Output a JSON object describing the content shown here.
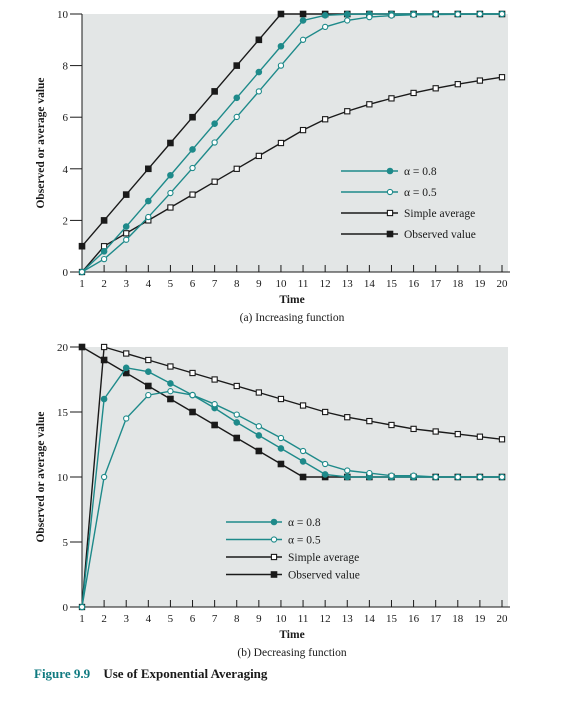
{
  "figure": {
    "number": "Figure 9.9",
    "title": "Use of Exponential Averaging"
  },
  "colors": {
    "plot_bg": "#e3e6e6",
    "teal": "#1e8a8a",
    "black": "#1a1a1a"
  },
  "chart_data": [
    {
      "type": "line",
      "subtitle": "(a) Increasing function",
      "xlabel": "Time",
      "ylabel": "Observed or average value",
      "xlim": [
        1,
        20
      ],
      "ylim": [
        0,
        10
      ],
      "xticks": [
        1,
        2,
        3,
        4,
        5,
        6,
        7,
        8,
        9,
        10,
        11,
        12,
        13,
        14,
        15,
        16,
        17,
        18,
        19,
        20
      ],
      "yticks": [
        0,
        2,
        4,
        6,
        8,
        10
      ],
      "legend": "right",
      "x": [
        1,
        2,
        3,
        4,
        5,
        6,
        7,
        8,
        9,
        10,
        11,
        12,
        13,
        14,
        15,
        16,
        17,
        18,
        19,
        20
      ],
      "series": [
        {
          "name": "α = 0.8",
          "color": "teal",
          "marker": "filled-circle",
          "values": [
            0,
            0.8,
            1.76,
            2.75,
            3.75,
            4.75,
            5.75,
            6.75,
            7.75,
            8.75,
            9.75,
            9.95,
            9.99,
            10,
            10,
            10,
            10,
            10,
            10,
            10
          ]
        },
        {
          "name": "α = 0.5",
          "color": "teal",
          "marker": "open-circle",
          "values": [
            0,
            0.5,
            1.25,
            2.13,
            3.06,
            4.03,
            5.02,
            6.01,
            7.0,
            8.0,
            9.0,
            9.5,
            9.75,
            9.88,
            9.94,
            9.97,
            9.98,
            9.99,
            10,
            10
          ]
        },
        {
          "name": "Simple average",
          "color": "black",
          "marker": "open-square",
          "values": [
            0,
            1.0,
            1.5,
            2.0,
            2.5,
            3.0,
            3.5,
            4.0,
            4.5,
            5.0,
            5.5,
            5.92,
            6.23,
            6.5,
            6.73,
            6.94,
            7.12,
            7.28,
            7.42,
            7.55
          ]
        },
        {
          "name": "Observed value",
          "color": "black",
          "marker": "filled-square",
          "values": [
            1,
            2,
            3,
            4,
            5,
            6,
            7,
            8,
            9,
            10,
            10,
            10,
            10,
            10,
            10,
            10,
            10,
            10,
            10,
            10
          ]
        }
      ]
    },
    {
      "type": "line",
      "subtitle": "(b) Decreasing function",
      "xlabel": "Time",
      "ylabel": "Observed or average value",
      "xlim": [
        1,
        20
      ],
      "ylim": [
        0,
        20
      ],
      "xticks": [
        1,
        2,
        3,
        4,
        5,
        6,
        7,
        8,
        9,
        10,
        11,
        12,
        13,
        14,
        15,
        16,
        17,
        18,
        19,
        20
      ],
      "yticks": [
        0,
        5,
        10,
        15,
        20
      ],
      "legend": "center",
      "x": [
        1,
        2,
        3,
        4,
        5,
        6,
        7,
        8,
        9,
        10,
        11,
        12,
        13,
        14,
        15,
        16,
        17,
        18,
        19,
        20
      ],
      "series": [
        {
          "name": "α = 0.8",
          "color": "teal",
          "marker": "filled-circle",
          "values": [
            0,
            16,
            18.4,
            18.1,
            17.2,
            16.3,
            15.3,
            14.2,
            13.2,
            12.2,
            11.2,
            10.2,
            10.0,
            10.0,
            10.0,
            10.0,
            10.0,
            10.0,
            10.0,
            10.0
          ]
        },
        {
          "name": "α = 0.5",
          "color": "teal",
          "marker": "open-circle",
          "values": [
            0,
            10,
            14.5,
            16.3,
            16.6,
            16.3,
            15.6,
            14.8,
            13.9,
            13.0,
            12.0,
            11.0,
            10.5,
            10.3,
            10.1,
            10.1,
            10.0,
            10.0,
            10.0,
            10.0
          ]
        },
        {
          "name": "Simple average",
          "color": "black",
          "marker": "open-square",
          "values": [
            0,
            20,
            19.5,
            19.0,
            18.5,
            18.0,
            17.5,
            17.0,
            16.5,
            16.0,
            15.5,
            15.0,
            14.6,
            14.3,
            14.0,
            13.7,
            13.5,
            13.3,
            13.1,
            12.9
          ]
        },
        {
          "name": "Observed value",
          "color": "black",
          "marker": "filled-square",
          "values": [
            20,
            19,
            18,
            17,
            16,
            15,
            14,
            13,
            12,
            11,
            10,
            10,
            10,
            10,
            10,
            10,
            10,
            10,
            10,
            10
          ]
        }
      ]
    }
  ]
}
